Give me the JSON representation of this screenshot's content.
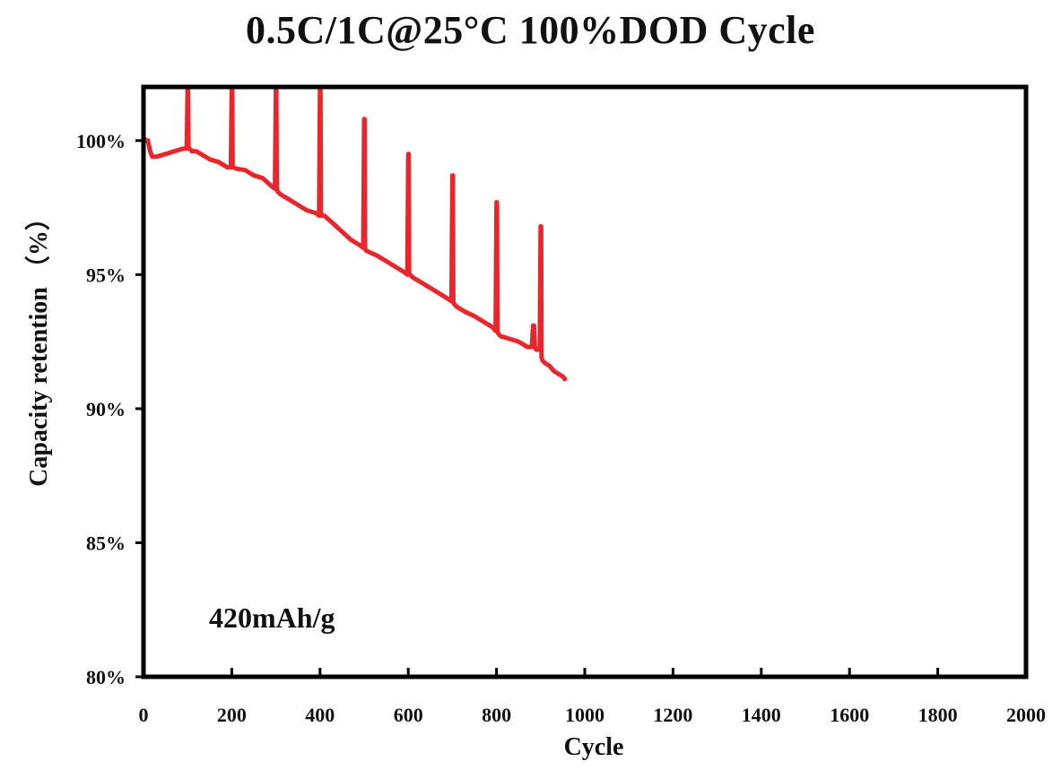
{
  "chart_data": {
    "type": "line",
    "title": "0.5C/1C@25°C 100%DOD Cycle",
    "xlabel": "Cycle",
    "ylabel": "Capacity retention （%）",
    "xlim": [
      0,
      2000
    ],
    "ylim": [
      80,
      102
    ],
    "x_ticks": [
      0,
      200,
      400,
      600,
      800,
      1000,
      1200,
      1400,
      1600,
      1800,
      2000
    ],
    "x_tick_labels": [
      "0",
      "200",
      "400",
      "600",
      "800",
      "1000",
      "1200",
      "1400",
      "1600",
      "1800",
      "2000"
    ],
    "y_ticks": [
      80,
      85,
      90,
      95,
      100
    ],
    "y_tick_labels": [
      "80%",
      "85%",
      "90%",
      "95%",
      "100%"
    ],
    "annotation": "420mAh/g",
    "grid": false,
    "legend": "none",
    "color": "#e8262b",
    "series": [
      {
        "x": [
          0,
          5,
          10,
          15,
          20,
          30,
          50,
          70,
          90,
          98,
          100,
          101,
          102,
          104,
          110,
          120,
          130,
          140,
          150,
          170,
          190,
          198,
          200,
          201,
          202,
          204,
          210,
          230,
          250,
          270,
          290,
          298,
          300,
          301,
          302,
          304,
          310,
          330,
          350,
          370,
          390,
          398,
          400,
          401,
          402,
          404,
          410,
          430,
          450,
          470,
          490,
          498,
          500,
          501,
          502,
          504,
          510,
          530,
          550,
          570,
          590,
          598,
          600,
          601,
          602,
          604,
          610,
          630,
          650,
          670,
          690,
          698,
          700,
          701,
          702,
          704,
          710,
          730,
          750,
          770,
          790,
          798,
          800,
          801,
          802,
          804,
          810,
          830,
          850,
          870,
          880,
          883,
          885,
          887,
          890,
          898,
          900,
          901,
          902,
          904,
          910,
          920,
          930,
          940,
          950,
          955
        ],
        "y": [
          100.1,
          100.0,
          100.0,
          99.6,
          99.4,
          99.4,
          99.5,
          99.6,
          99.7,
          99.7,
          102.0,
          102.0,
          99.7,
          99.7,
          99.6,
          99.6,
          99.5,
          99.4,
          99.3,
          99.2,
          99.0,
          99.0,
          102.0,
          102.0,
          99.0,
          99.0,
          98.95,
          98.9,
          98.7,
          98.6,
          98.3,
          98.2,
          102.0,
          102.0,
          98.2,
          98.1,
          98.0,
          97.8,
          97.6,
          97.4,
          97.3,
          97.2,
          102.0,
          102.0,
          97.2,
          97.2,
          97.2,
          96.9,
          96.6,
          96.3,
          96.1,
          96.0,
          100.8,
          100.8,
          96.0,
          95.9,
          95.85,
          95.7,
          95.5,
          95.3,
          95.1,
          95.0,
          99.5,
          99.5,
          95.0,
          95.0,
          94.9,
          94.7,
          94.5,
          94.3,
          94.1,
          94.0,
          98.7,
          98.7,
          94.0,
          93.9,
          93.8,
          93.6,
          93.45,
          93.25,
          93.05,
          92.9,
          97.7,
          97.7,
          92.9,
          92.8,
          92.7,
          92.6,
          92.5,
          92.3,
          92.3,
          93.1,
          93.1,
          92.3,
          92.2,
          92.2,
          96.8,
          96.8,
          91.9,
          91.8,
          91.7,
          91.6,
          91.4,
          91.3,
          91.2,
          91.1
        ]
      }
    ]
  }
}
